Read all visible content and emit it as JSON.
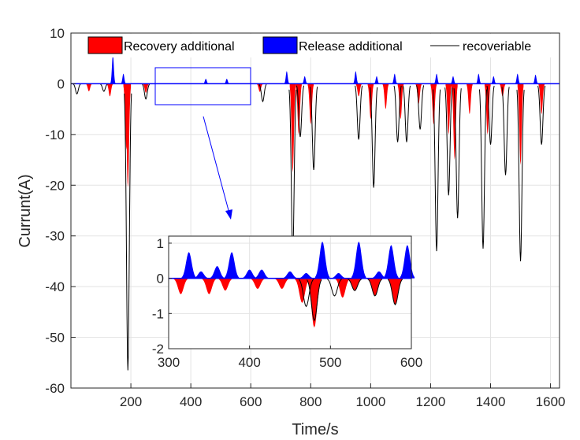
{
  "chart_data": {
    "type": "area",
    "xlabel": "Time/s",
    "ylabel": "Currunt(A)",
    "xlim": [
      0,
      1630
    ],
    "ylim": [
      -60,
      10
    ],
    "xticks": [
      200,
      400,
      600,
      800,
      1000,
      1200,
      1400,
      1600
    ],
    "yticks": [
      10,
      0,
      -10,
      -20,
      -30,
      -40,
      -50,
      -60
    ],
    "grid": true,
    "legend": {
      "placement": "top",
      "entries": [
        "Recovery additional",
        "Release additional",
        "recoveriable"
      ]
    },
    "series": [
      {
        "name": "Recovery additional",
        "color": "#ff0000",
        "x": [
          60,
          130,
          185,
          190,
          250,
          630,
          740,
          760,
          800,
          960,
          1000,
          1050,
          1100,
          1160,
          1210,
          1260,
          1280,
          1330,
          1390,
          1440,
          1500,
          1570
        ],
        "y": [
          -1.5,
          -2.5,
          -13,
          -20.5,
          -1.8,
          -1.6,
          -17.5,
          -10,
          -8,
          -2.5,
          -7,
          -5,
          -7,
          -4,
          -8,
          -10,
          -15,
          -6,
          -10,
          -2.5,
          -16,
          -6
        ]
      },
      {
        "name": "Release additional",
        "color": "#0000ff",
        "x": [
          140,
          175,
          450,
          520,
          720,
          780,
          950,
          1020,
          1080,
          1220,
          1275,
          1360,
          1410,
          1490,
          1550
        ],
        "y": [
          5.8,
          2,
          1,
          1,
          2.5,
          1.5,
          2.5,
          1.5,
          2,
          2,
          1.5,
          2,
          1.5,
          2,
          1.8
        ]
      },
      {
        "name": "recoveriable",
        "color": "#000000",
        "x": [
          20,
          110,
          190,
          250,
          640,
          740,
          765,
          810,
          960,
          1010,
          1090,
          1120,
          1165,
          1220,
          1260,
          1290,
          1375,
          1400,
          1450,
          1500,
          1570
        ],
        "y": [
          -2,
          -1.5,
          -56.5,
          -3,
          -3.5,
          -34,
          -10.5,
          -17,
          -11,
          -20.5,
          -11.5,
          -11.5,
          -9,
          -33,
          -22,
          -26.5,
          -32.5,
          -12,
          -18,
          -35,
          -12
        ]
      }
    ],
    "inset": {
      "xlim": [
        300,
        600
      ],
      "ylim": [
        -2,
        1.2
      ],
      "xticks": [
        300,
        400,
        500,
        600
      ],
      "yticks": [
        1,
        0,
        -1,
        -2
      ],
      "series": {
        "recovery_x": [
          315,
          350,
          370,
          410,
          440,
          465,
          480,
          515,
          530,
          555,
          580
        ],
        "recovery_y": [
          -0.45,
          -0.45,
          -0.35,
          -0.3,
          -0.3,
          -0.7,
          -1.4,
          -0.55,
          -0.35,
          -0.5,
          -0.75
        ],
        "release_x": [
          325,
          340,
          360,
          378,
          400,
          415,
          450,
          470,
          490,
          510,
          535,
          560,
          575,
          595
        ],
        "release_y": [
          0.75,
          0.2,
          0.35,
          0.75,
          0.25,
          0.25,
          0.2,
          0.15,
          1.05,
          0.15,
          1.05,
          0.2,
          0.95,
          0.95
        ],
        "recoverable_x": [
          470,
          480,
          505,
          530,
          555,
          580
        ],
        "recoverable_y": [
          -0.8,
          -1.2,
          -0.5,
          -0.35,
          -0.5,
          -0.75
        ]
      }
    },
    "colors": {
      "recovery": "#ff0000",
      "release": "#0000ff",
      "recoverable": "#000000",
      "highlight_box": "#0000ff",
      "arrow": "#0000ff"
    }
  }
}
